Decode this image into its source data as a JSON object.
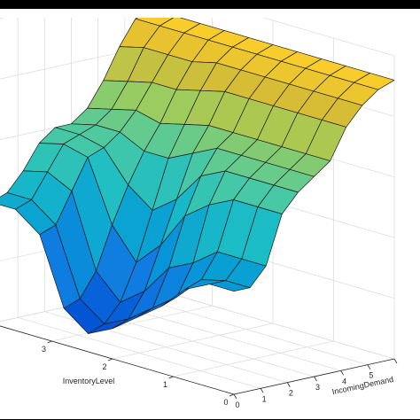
{
  "chart_data": {
    "type": "surface",
    "title": "",
    "xlabel": "IncomingDemand",
    "ylabel": "InventoryLevel",
    "zlabel": "",
    "colormap": "parula",
    "grid": true,
    "x_ticks": [
      "0",
      "1",
      "2",
      "3",
      "4",
      "5"
    ],
    "y_ticks": [
      "0",
      "1",
      "2",
      "3"
    ],
    "xlim": [
      0,
      6
    ],
    "ylim": [
      0,
      4
    ],
    "x": [
      0,
      0.6,
      1.2,
      1.8,
      2.4,
      3.0,
      3.6,
      4.2,
      4.8,
      5.4,
      6.0
    ],
    "y": [
      0,
      0.4,
      0.8,
      1.2,
      1.6,
      2.0,
      2.4,
      2.8,
      3.2,
      3.6,
      4.0
    ],
    "z": [
      [
        0.34,
        0.34,
        0.4,
        0.56,
        0.62,
        0.66,
        0.7,
        0.8,
        0.86,
        0.9,
        0.92
      ],
      [
        0.34,
        0.34,
        0.4,
        0.56,
        0.62,
        0.66,
        0.7,
        0.8,
        0.86,
        0.9,
        0.92
      ],
      [
        0.3,
        0.32,
        0.4,
        0.56,
        0.62,
        0.66,
        0.7,
        0.8,
        0.86,
        0.9,
        0.92
      ],
      [
        0.22,
        0.24,
        0.34,
        0.52,
        0.62,
        0.66,
        0.7,
        0.8,
        0.86,
        0.9,
        0.92
      ],
      [
        0.16,
        0.18,
        0.3,
        0.46,
        0.58,
        0.66,
        0.7,
        0.8,
        0.86,
        0.9,
        0.92
      ],
      [
        0.1,
        0.12,
        0.2,
        0.34,
        0.48,
        0.62,
        0.7,
        0.8,
        0.86,
        0.9,
        0.92
      ],
      [
        0.06,
        0.08,
        0.14,
        0.26,
        0.42,
        0.58,
        0.68,
        0.78,
        0.86,
        0.9,
        0.92
      ],
      [
        0.12,
        0.14,
        0.22,
        0.36,
        0.48,
        0.58,
        0.66,
        0.76,
        0.84,
        0.9,
        0.92
      ],
      [
        0.34,
        0.36,
        0.46,
        0.56,
        0.58,
        0.62,
        0.68,
        0.76,
        0.84,
        0.9,
        0.92
      ],
      [
        0.4,
        0.42,
        0.5,
        0.58,
        0.6,
        0.62,
        0.66,
        0.74,
        0.84,
        0.9,
        0.92
      ],
      [
        0.4,
        0.42,
        0.48,
        0.56,
        0.6,
        0.6,
        0.64,
        0.72,
        0.82,
        0.9,
        0.92
      ]
    ]
  }
}
